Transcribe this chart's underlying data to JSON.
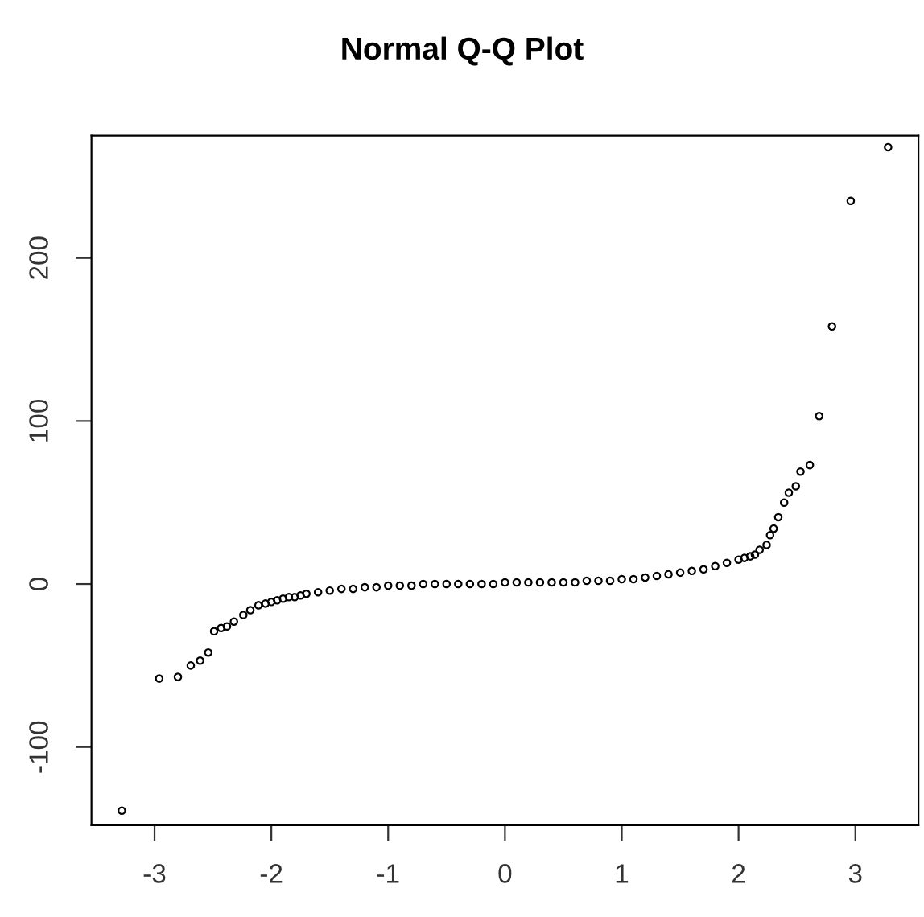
{
  "chart_data": {
    "type": "scatter",
    "title": "Normal Q-Q Plot",
    "x": [
      -3.28,
      -2.96,
      -2.8,
      -2.69,
      -2.61,
      -2.54,
      -2.49,
      -2.43,
      -2.38,
      -2.32,
      -2.24,
      -2.18,
      -2.11,
      -2.05,
      -2.0,
      -1.95,
      -1.9,
      -1.85,
      -1.8,
      -1.75,
      -1.7,
      -1.6,
      -1.5,
      -1.4,
      -1.3,
      -1.2,
      -1.1,
      -1.0,
      -0.9,
      -0.8,
      -0.7,
      -0.6,
      -0.5,
      -0.4,
      -0.3,
      -0.2,
      -0.1,
      0.0,
      0.1,
      0.2,
      0.3,
      0.4,
      0.5,
      0.6,
      0.7,
      0.8,
      0.9,
      1.0,
      1.1,
      1.2,
      1.3,
      1.4,
      1.5,
      1.6,
      1.7,
      1.8,
      1.9,
      2.0,
      2.05,
      2.1,
      2.14,
      2.18,
      2.24,
      2.27,
      2.3,
      2.34,
      2.39,
      2.43,
      2.49,
      2.53,
      2.61,
      2.69,
      2.8,
      2.96,
      3.28
    ],
    "values": [
      -139,
      -58,
      -57,
      -50,
      -47,
      -42,
      -29,
      -27,
      -26,
      -23,
      -19,
      -16,
      -13,
      -12,
      -11,
      -10,
      -9,
      -8,
      -8,
      -7,
      -6,
      -5,
      -4,
      -3,
      -3,
      -2,
      -2,
      -1,
      -1,
      -1,
      0,
      0,
      0,
      0,
      0,
      0,
      0,
      1,
      1,
      1,
      1,
      1,
      1,
      1,
      2,
      2,
      2,
      3,
      3,
      4,
      5,
      6,
      7,
      8,
      9,
      11,
      13,
      15,
      16,
      17,
      18,
      21,
      24,
      30,
      34,
      41,
      50,
      56,
      60,
      69,
      73,
      103,
      158,
      235,
      268
    ],
    "color": "#000000",
    "marker": "circle",
    "xlim": [
      -3.54,
      3.54
    ],
    "ylim": [
      -148,
      275
    ],
    "xticks": [
      -3,
      -2,
      -1,
      0,
      1,
      2,
      3
    ],
    "yticks": [
      -100,
      0,
      100,
      200
    ],
    "grid": false,
    "legend": false
  }
}
